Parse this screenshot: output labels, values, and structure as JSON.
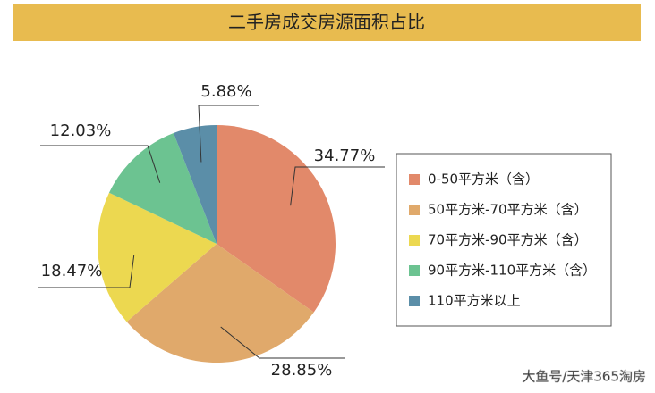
{
  "chart_data": {
    "type": "pie",
    "title": "二手房成交房源面积占比",
    "categories": [
      "0-50平方米（含）",
      "50平方米-70平方米（含）",
      "70平方米-90平方米（含）",
      "90平方米-110平方米（含）",
      "110平方米以上"
    ],
    "values": [
      34.77,
      28.85,
      18.47,
      12.03,
      5.88
    ],
    "value_labels": [
      "34.77%",
      "28.85%",
      "18.47%",
      "12.03%",
      "5.88%"
    ],
    "colors": [
      "#e2896a",
      "#e0a96b",
      "#ecd850",
      "#6cc391",
      "#5b8ea8"
    ],
    "title_color": "#e8bb4f",
    "watermark": "大鱼号/天津365淘房"
  }
}
